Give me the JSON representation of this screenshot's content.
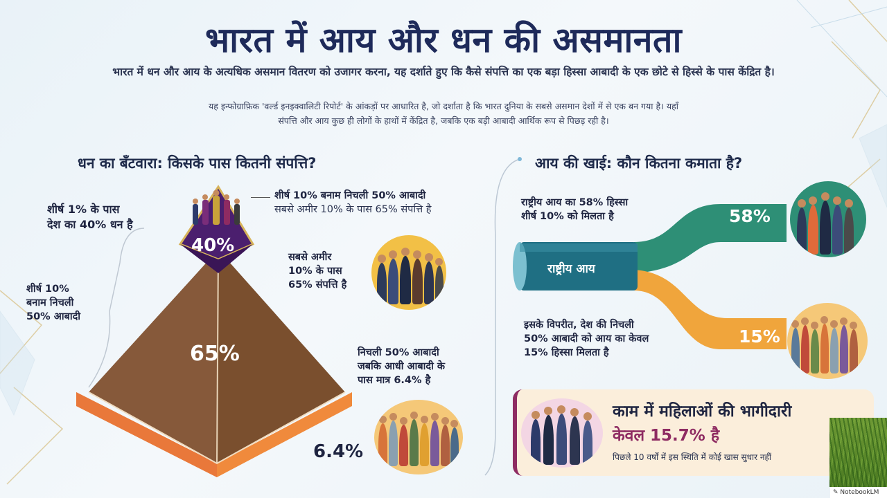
{
  "title": "भारत में आय और धन की असमानता",
  "subtitle": "भारत में धन और आय के अत्यधिक असमान वितरण को उजागर करना, यह दर्शाते हुए कि कैसे संपत्ति का एक बड़ा हिस्सा आबादी के एक छोटे से हिस्से के पास केंद्रित है।",
  "intro": {
    "line1": "यह इन्फोग्राफ़िक 'वर्ल्ड इनइक्वालिटी रिपोर्ट' के आंकड़ों पर आधारित है, जो दर्शाता है कि भारत दुनिया के सबसे असमान देशों में से एक बन गया है। यहाँ",
    "line2": "संपत्ति और आय कुछ ही लोगों के हाथों में केंद्रित है, जबकि एक बड़ी आबादी आर्थिक रूप से पिछड़ रही है।"
  },
  "wealth": {
    "heading": "धन का बँटवारा: किसके पास कितनी संपत्ति?",
    "top1_label_l1": "शीर्ष 1% के पास",
    "top1_label_l2": "देश का 40% धन है",
    "top10_side_l1": "शीर्ष 10%",
    "top10_side_l2": "बनाम निचली",
    "top10_side_l3": "50% आबादी",
    "callout_top_l1": "शीर्ष 10% बनाम निचली 50% आबादी",
    "callout_top_l2": "सबसे अमीर 10% के पास 65% संपत्ति है",
    "callout_mid_l1": "सबसे अमीर",
    "callout_mid_l2": "10% के पास",
    "callout_mid_l3": "65% संपत्ति है",
    "callout_bot_l1": "निचली 50% आबादी",
    "callout_bot_l2": "जबकि आधी आबादी के",
    "callout_bot_l3": "पास मात्र 6.4% है",
    "pct_top": "40%",
    "pct_mid": "65%",
    "pct_bottom": "6.4%"
  },
  "income": {
    "heading": "आय की खाई: कौन कितना कमाता है?",
    "top_label_l1": "राष्ट्रीय आय का 58% हिस्सा",
    "top_label_l2": "शीर्ष 10% को मिलता है",
    "pipe_label": "राष्ट्रीय आय",
    "pct_top": "58%",
    "pct_bottom": "15%",
    "bottom_label_l1": "इसके विपरीत, देश की निचली",
    "bottom_label_l2": "50% आबादी को आय का केवल",
    "bottom_label_l3": "15% हिस्सा मिलता है"
  },
  "women": {
    "title_l1": "काम में महिलाओं की भागीदारी",
    "title_l2": "केवल 15.7% है",
    "note": "पिछले 10 वर्षों में इस स्थिति में कोई खास सुधार नहीं"
  },
  "watermark": "NotebookLM",
  "colors": {
    "navy": "#1e2a5a",
    "pyramid_brown": "#7a4f2e",
    "pyramid_purple": "#4b1f6e",
    "orange": "#f08a3c",
    "teal": "#2e8f76",
    "amber": "#f0a53c",
    "magenta": "#8e2b62"
  }
}
